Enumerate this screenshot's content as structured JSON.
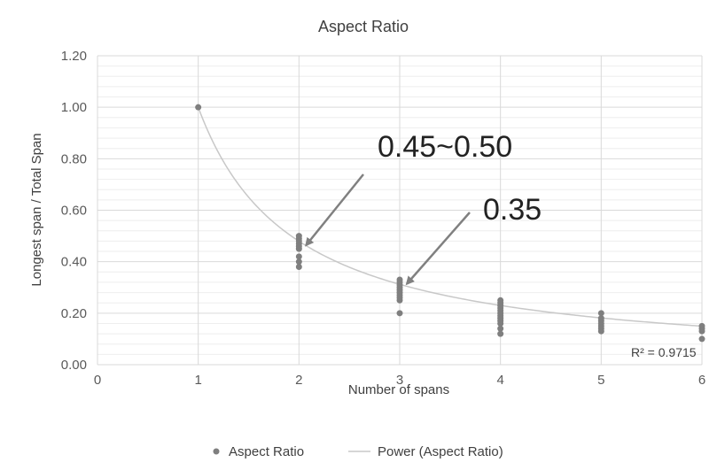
{
  "chart_data": {
    "type": "scatter",
    "title": "Aspect Ratio",
    "xlabel": "Number of spans",
    "ylabel": "Longest span / Total Span",
    "xlim": [
      0,
      6
    ],
    "ylim": [
      0,
      1.2
    ],
    "x_ticks": [
      "0",
      "1",
      "2",
      "3",
      "4",
      "5",
      "6"
    ],
    "y_ticks": [
      "0.00",
      "0.20",
      "0.40",
      "0.60",
      "0.80",
      "1.00",
      "1.20"
    ],
    "grid": true,
    "legend_position": "bottom",
    "series": [
      {
        "name": "Aspect Ratio",
        "kind": "scatter",
        "color": "#7f7f7f",
        "points": [
          [
            1,
            1.0
          ],
          [
            2,
            0.38
          ],
          [
            2,
            0.4
          ],
          [
            2,
            0.42
          ],
          [
            2,
            0.45
          ],
          [
            2,
            0.46
          ],
          [
            2,
            0.47
          ],
          [
            2,
            0.48
          ],
          [
            2,
            0.49
          ],
          [
            2,
            0.5
          ],
          [
            3,
            0.2
          ],
          [
            3,
            0.25
          ],
          [
            3,
            0.26
          ],
          [
            3,
            0.27
          ],
          [
            3,
            0.28
          ],
          [
            3,
            0.29
          ],
          [
            3,
            0.3
          ],
          [
            3,
            0.31
          ],
          [
            3,
            0.32
          ],
          [
            3,
            0.33
          ],
          [
            4,
            0.12
          ],
          [
            4,
            0.14
          ],
          [
            4,
            0.16
          ],
          [
            4,
            0.17
          ],
          [
            4,
            0.18
          ],
          [
            4,
            0.19
          ],
          [
            4,
            0.2
          ],
          [
            4,
            0.21
          ],
          [
            4,
            0.22
          ],
          [
            4,
            0.23
          ],
          [
            4,
            0.24
          ],
          [
            4,
            0.25
          ],
          [
            5,
            0.13
          ],
          [
            5,
            0.14
          ],
          [
            5,
            0.15
          ],
          [
            5,
            0.16
          ],
          [
            5,
            0.17
          ],
          [
            5,
            0.18
          ],
          [
            5,
            0.2
          ],
          [
            6,
            0.1
          ],
          [
            6,
            0.13
          ],
          [
            6,
            0.14
          ],
          [
            6,
            0.15
          ]
        ]
      },
      {
        "name": "Power (Aspect Ratio)",
        "kind": "trendline",
        "color": "#c8c8c8",
        "equation": "y = x^-1.06"
      }
    ],
    "annotations": [
      {
        "text": "0.45~0.50",
        "points_to": [
          2,
          0.45
        ]
      },
      {
        "text": "0.35",
        "points_to": [
          3,
          0.3
        ]
      }
    ],
    "r_squared_label": "R² = 0.9715"
  }
}
